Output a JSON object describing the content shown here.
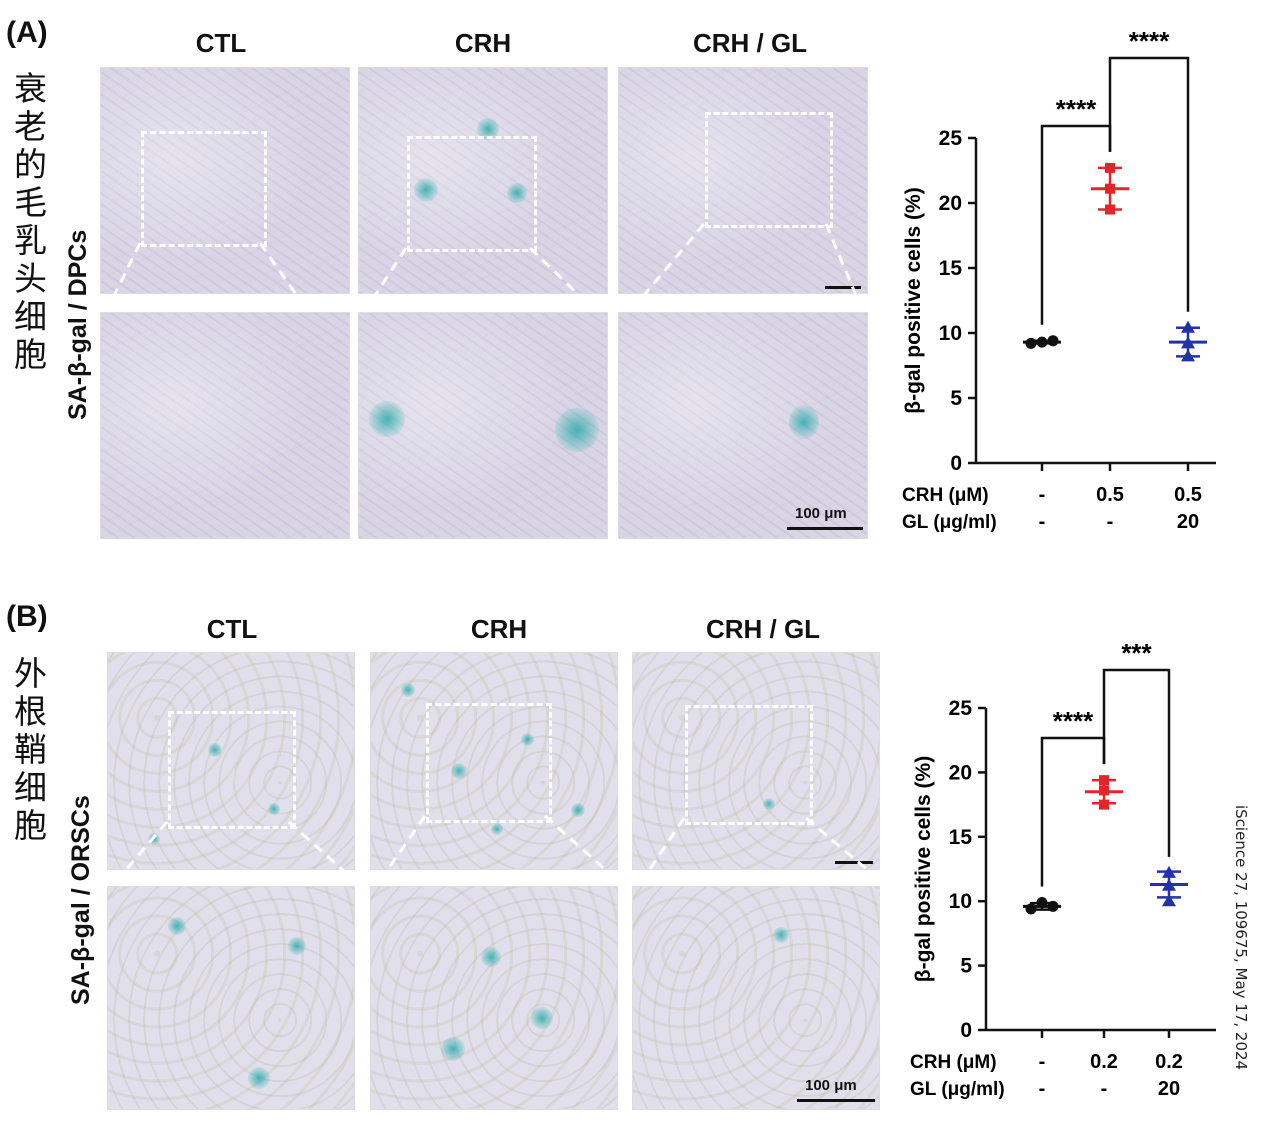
{
  "panel_a": {
    "letter": "(A)",
    "chinese_label": "衰老的毛乳头细胞",
    "row_label": "SA-β-gal / DPCs",
    "columns": [
      "CTL",
      "CRH",
      "CRH / GL"
    ],
    "scale_label": "100 μm"
  },
  "panel_b": {
    "letter": "(B)",
    "chinese_label": "外根鞘细胞",
    "row_label": "SA-β-gal / ORSCs",
    "columns": [
      "CTL",
      "CRH",
      "CRH / GL"
    ],
    "scale_label": "100 μm"
  },
  "credit": "iScience 27, 109675, May 17, 2024",
  "colors": {
    "ctl": "#111111",
    "crh": "#e0252b",
    "crh_gl": "#2233a8"
  },
  "chart_data": [
    {
      "type": "scatter",
      "panel": "A",
      "ylabel": "β-gal positive cells (%)",
      "ylim": [
        0,
        25
      ],
      "yticks": [
        0,
        5,
        10,
        15,
        20,
        25
      ],
      "row_labels": [
        "CRH (μM)",
        "GL (μg/ml)"
      ],
      "groups": [
        {
          "crh": "-",
          "gl": "-",
          "values": [
            9.2,
            9.3,
            9.4
          ],
          "mean": 9.3,
          "sd": 0.1,
          "marker": "circle",
          "color": "#111111"
        },
        {
          "crh": "0.5",
          "gl": "-",
          "values": [
            22.7,
            21.1,
            19.5
          ],
          "mean": 21.1,
          "sd": 1.6,
          "marker": "square",
          "color": "#e0252b"
        },
        {
          "crh": "0.5",
          "gl": "20",
          "values": [
            10.4,
            9.2,
            8.2
          ],
          "mean": 9.3,
          "sd": 1.1,
          "marker": "triangle",
          "color": "#2233a8"
        }
      ],
      "significance": [
        {
          "from": 0,
          "to": 1,
          "label": "****"
        },
        {
          "from": 1,
          "to": 2,
          "label": "****"
        }
      ]
    },
    {
      "type": "scatter",
      "panel": "B",
      "ylabel": "β-gal positive cells (%)",
      "ylim": [
        0,
        25
      ],
      "yticks": [
        0,
        5,
        10,
        15,
        20,
        25
      ],
      "row_labels": [
        "CRH (μM)",
        "GL (μg/ml)"
      ],
      "groups": [
        {
          "crh": "-",
          "gl": "-",
          "values": [
            9.4,
            9.9,
            9.6
          ],
          "mean": 9.6,
          "sd": 0.25,
          "marker": "circle",
          "color": "#111111"
        },
        {
          "crh": "0.2",
          "gl": "-",
          "values": [
            19.4,
            18.6,
            17.5
          ],
          "mean": 18.5,
          "sd": 0.9,
          "marker": "square",
          "color": "#e0252b"
        },
        {
          "crh": "0.2",
          "gl": "20",
          "values": [
            12.2,
            11.2,
            10.0
          ],
          "mean": 11.3,
          "sd": 1.0,
          "marker": "triangle",
          "color": "#2233a8"
        }
      ],
      "significance": [
        {
          "from": 0,
          "to": 1,
          "label": "****"
        },
        {
          "from": 1,
          "to": 2,
          "label": "***"
        }
      ]
    }
  ]
}
